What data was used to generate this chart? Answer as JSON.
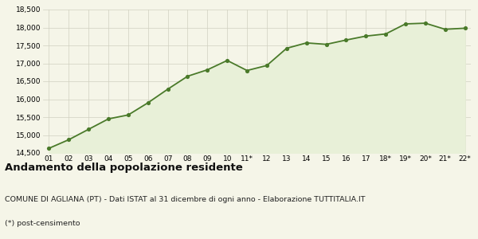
{
  "x_labels": [
    "01",
    "02",
    "03",
    "04",
    "05",
    "06",
    "07",
    "08",
    "09",
    "10",
    "11*",
    "12",
    "13",
    "14",
    "15",
    "16",
    "17",
    "18*",
    "19*",
    "20*",
    "21*",
    "22*"
  ],
  "x_values": [
    0,
    1,
    2,
    3,
    4,
    5,
    6,
    7,
    8,
    9,
    10,
    11,
    12,
    13,
    14,
    15,
    16,
    17,
    18,
    19,
    20,
    21
  ],
  "y_values": [
    14630,
    14870,
    15160,
    15450,
    15560,
    15900,
    16280,
    16640,
    16820,
    17080,
    16800,
    16940,
    17420,
    17570,
    17530,
    17650,
    17760,
    17820,
    18100,
    18120,
    17950,
    17980
  ],
  "line_color": "#4a7a2a",
  "fill_color": "#e8f0d8",
  "marker_color": "#4a7a2a",
  "bg_color": "#f5f5e8",
  "grid_color": "#d0d0c0",
  "ylim": [
    14500,
    18500
  ],
  "yticks": [
    14500,
    15000,
    15500,
    16000,
    16500,
    17000,
    17500,
    18000,
    18500
  ],
  "title": "Andamento della popolazione residente",
  "subtitle": "COMUNE DI AGLIANA (PT) - Dati ISTAT al 31 dicembre di ogni anno - Elaborazione TUTTITALIA.IT",
  "footnote": "(*) post-censimento",
  "title_fontsize": 9.5,
  "subtitle_fontsize": 6.8,
  "footnote_fontsize": 6.8,
  "tick_fontsize": 6.5,
  "ytick_fontsize": 6.5
}
